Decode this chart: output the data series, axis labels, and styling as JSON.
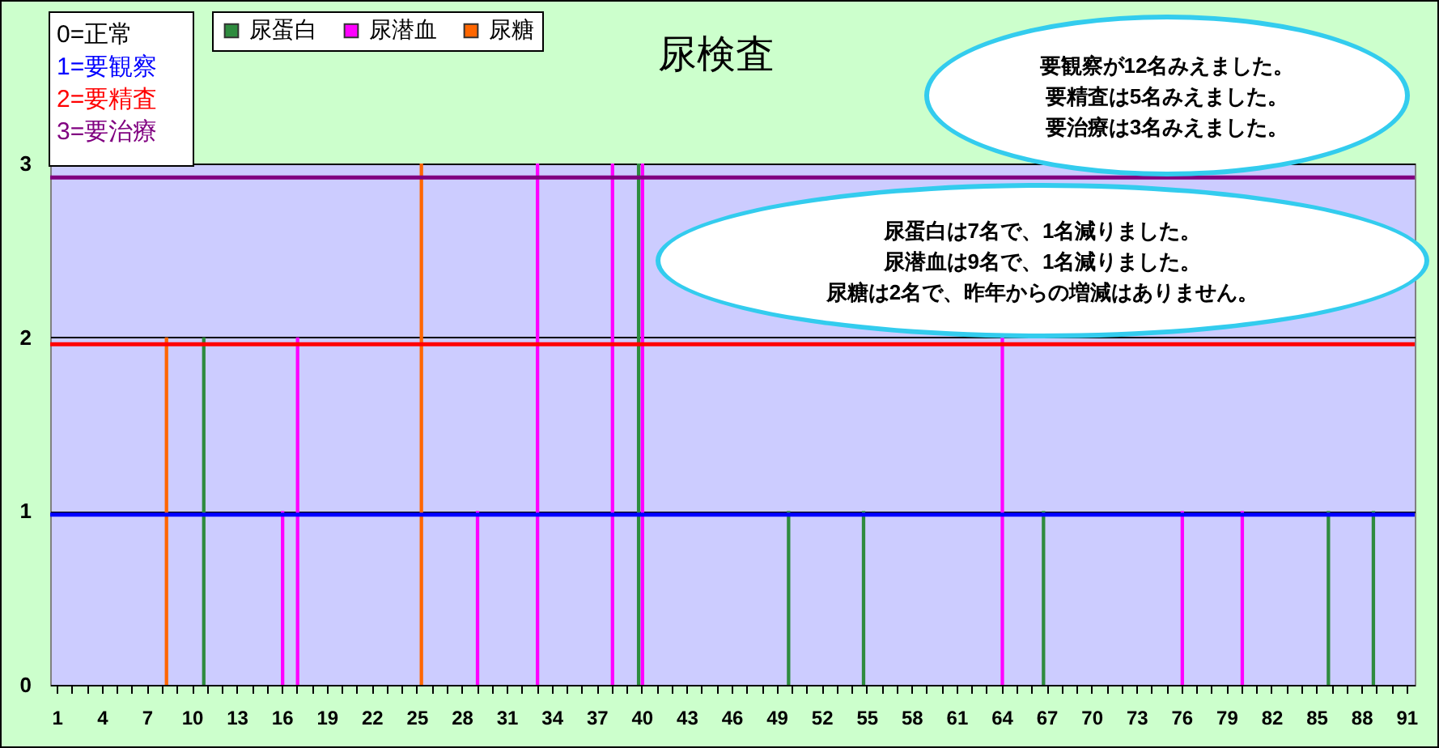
{
  "chart_data": {
    "type": "bar",
    "title": "尿検査",
    "categories": [
      "1",
      null,
      null,
      "4",
      null,
      null,
      "7",
      null,
      null,
      "10",
      null,
      null,
      "13",
      null,
      null,
      "16",
      null,
      null,
      "19",
      null,
      null,
      "22",
      null,
      null,
      "25",
      null,
      null,
      "28",
      null,
      null,
      "31",
      null,
      null,
      "34",
      null,
      null,
      "37",
      null,
      null,
      "40",
      null,
      null,
      "43",
      null,
      null,
      "46",
      null,
      null,
      "49",
      null,
      null,
      "52",
      null,
      null,
      "55",
      null,
      null,
      "58",
      null,
      null,
      "61",
      null,
      null,
      "64",
      null,
      null,
      "67",
      null,
      null,
      "70",
      null,
      null,
      "73",
      null,
      null,
      "76",
      null,
      null,
      "79",
      null,
      null,
      "82",
      null,
      null,
      "85",
      null,
      null,
      "88",
      null,
      null,
      "91"
    ],
    "series": [
      {
        "name": "尿蛋白",
        "color": "#2e8b3e",
        "values": [
          0,
          0,
          0,
          0,
          0,
          0,
          0,
          0,
          0,
          0,
          2,
          0,
          0,
          0,
          0,
          0,
          0,
          0,
          0,
          0,
          0,
          0,
          0,
          0,
          0,
          0,
          0,
          0,
          0,
          0,
          0,
          0,
          0,
          0,
          0,
          0,
          0,
          0,
          0,
          3,
          0,
          0,
          0,
          0,
          0,
          0,
          0,
          0,
          0,
          1,
          0,
          0,
          0,
          0,
          1,
          0,
          0,
          0,
          0,
          0,
          0,
          0,
          0,
          0,
          0,
          0,
          1,
          0,
          0,
          0,
          0,
          0,
          0,
          0,
          0,
          0,
          0,
          0,
          0,
          0,
          0,
          0,
          0,
          0,
          0,
          1,
          0,
          0,
          1,
          0,
          0
        ]
      },
      {
        "name": "尿潜血",
        "color": "#ff00ff",
        "values": [
          0,
          0,
          0,
          0,
          0,
          0,
          0,
          0,
          0,
          0,
          0,
          0,
          0,
          0,
          0,
          1,
          2,
          0,
          0,
          0,
          0,
          0,
          0,
          0,
          0,
          0,
          0,
          0,
          1,
          0,
          0,
          0,
          3,
          0,
          0,
          0,
          0,
          3,
          0,
          3,
          0,
          0,
          0,
          0,
          0,
          0,
          0,
          0,
          0,
          0,
          0,
          0,
          0,
          0,
          0,
          0,
          0,
          0,
          0,
          0,
          0,
          0,
          0,
          2,
          0,
          0,
          0,
          0,
          0,
          0,
          0,
          0,
          0,
          0,
          0,
          1,
          0,
          0,
          0,
          1,
          0,
          0,
          0,
          0,
          0,
          0,
          0,
          0,
          0,
          0,
          0
        ]
      },
      {
        "name": "尿糖",
        "color": "#ff6600",
        "values": [
          0,
          0,
          0,
          0,
          0,
          0,
          0,
          2,
          0,
          0,
          0,
          0,
          0,
          0,
          0,
          0,
          0,
          0,
          0,
          0,
          0,
          0,
          0,
          0,
          3,
          0,
          0,
          0,
          0,
          0,
          0,
          0,
          0,
          0,
          0,
          0,
          0,
          0,
          0,
          0,
          0,
          0,
          0,
          0,
          0,
          0,
          0,
          0,
          0,
          0,
          0,
          0,
          0,
          0,
          0,
          0,
          0,
          0,
          0,
          0,
          0,
          0,
          0,
          0,
          0,
          0,
          0,
          0,
          0,
          0,
          0,
          0,
          0,
          0,
          0,
          0,
          0,
          0,
          0,
          0,
          0,
          0,
          0,
          0,
          0,
          0,
          0,
          0,
          0,
          0,
          0
        ]
      }
    ],
    "ylim": [
      0,
      3
    ],
    "yticks": [
      0,
      1,
      2,
      3
    ],
    "grid": "y",
    "legend": "top",
    "ref_lines": [
      {
        "axis": "y",
        "value": 0.98,
        "color": "#0000ff"
      },
      {
        "axis": "y",
        "value": 1.96,
        "color": "#ff0000"
      },
      {
        "axis": "y",
        "value": 2.92,
        "color": "#800080"
      }
    ],
    "annotations": [
      "0=正常",
      "1=要観察",
      "2=要精査",
      "3=要治療",
      "要観察が12名みえました。",
      "要精査は5名みえました。",
      "要治療は3名みえました。",
      "尿蛋白は7名で、1名減りました。",
      "尿潜血は9名で、1名減りました。",
      "尿糖は2名で、昨年からの増減はありません。"
    ]
  }
}
